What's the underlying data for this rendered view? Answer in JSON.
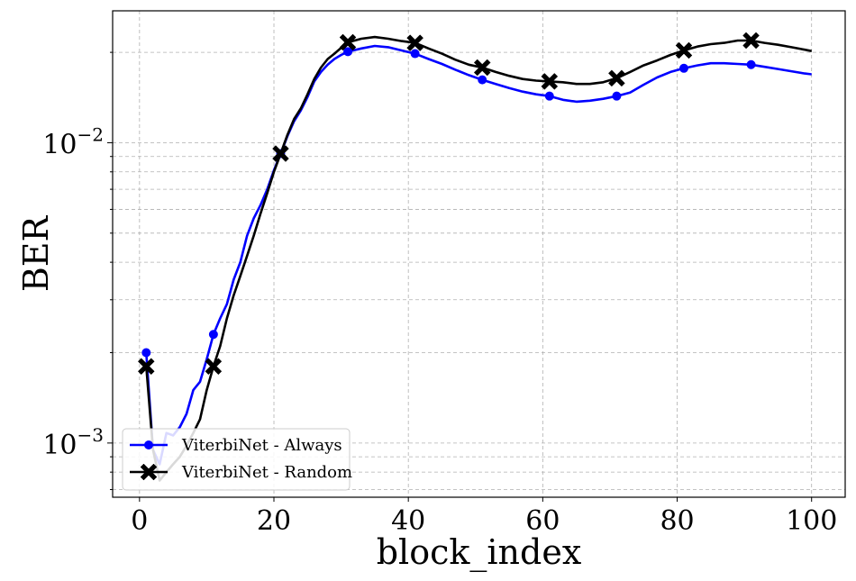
{
  "chart_data": {
    "type": "line",
    "xlabel": "block_index",
    "ylabel": "BER",
    "xlim": [
      -4,
      105
    ],
    "ylim": [
      0.00066,
      0.0275
    ],
    "yscale": "log",
    "grid": true,
    "grid_which": "both",
    "legend_position": "lower-left",
    "x_ticks": [
      0,
      20,
      40,
      60,
      80,
      100
    ],
    "x_tick_labels": [
      "0",
      "20",
      "40",
      "60",
      "80",
      "100"
    ],
    "y_ticks": [
      0.001,
      0.01
    ],
    "y_tick_labels": [
      {
        "base": "10",
        "exp": "−3"
      },
      {
        "base": "10",
        "exp": "−2"
      }
    ],
    "series": [
      {
        "name": "ViterbiNet - Always",
        "color": "#0000ff",
        "marker": "circle",
        "markevery": [
          1,
          11,
          21,
          31,
          41,
          51,
          61,
          71,
          81,
          91
        ],
        "x": [
          1,
          2,
          3,
          4,
          5,
          6,
          7,
          8,
          9,
          10,
          11,
          12,
          13,
          14,
          15,
          16,
          17,
          18,
          19,
          20,
          21,
          22,
          23,
          24,
          25,
          26,
          27,
          28,
          29,
          30,
          31,
          33,
          35,
          37,
          39,
          41,
          43,
          45,
          47,
          49,
          51,
          53,
          55,
          57,
          59,
          61,
          63,
          65,
          67,
          69,
          71,
          73,
          75,
          77,
          79,
          81,
          83,
          85,
          87,
          89,
          91,
          93,
          95,
          97,
          99,
          100
        ],
        "y": [
          0.002,
          0.00095,
          0.00085,
          0.00108,
          0.00106,
          0.00113,
          0.00125,
          0.0015,
          0.0016,
          0.0019,
          0.0023,
          0.0026,
          0.0029,
          0.0035,
          0.004,
          0.0049,
          0.0056,
          0.0062,
          0.007,
          0.0081,
          0.0092,
          0.0105,
          0.0118,
          0.0128,
          0.0142,
          0.016,
          0.0172,
          0.0182,
          0.019,
          0.0196,
          0.0201,
          0.0206,
          0.021,
          0.0208,
          0.0203,
          0.0198,
          0.019,
          0.0183,
          0.0175,
          0.0168,
          0.0162,
          0.0157,
          0.0152,
          0.0148,
          0.0145,
          0.0143,
          0.0139,
          0.0137,
          0.0138,
          0.014,
          0.0143,
          0.0147,
          0.0156,
          0.0165,
          0.0172,
          0.0177,
          0.0181,
          0.0184,
          0.0184,
          0.0183,
          0.0182,
          0.0179,
          0.0176,
          0.0173,
          0.017,
          0.0169
        ]
      },
      {
        "name": "ViterbiNet - Random",
        "color": "#000000",
        "marker": "X",
        "markevery": [
          1,
          11,
          21,
          31,
          41,
          51,
          61,
          71,
          81,
          91
        ],
        "x": [
          1,
          2,
          3,
          4,
          5,
          6,
          7,
          8,
          9,
          10,
          11,
          12,
          13,
          14,
          15,
          16,
          17,
          18,
          19,
          20,
          21,
          22,
          23,
          24,
          25,
          26,
          27,
          28,
          29,
          30,
          31,
          33,
          35,
          37,
          39,
          41,
          43,
          45,
          47,
          49,
          51,
          53,
          55,
          57,
          59,
          61,
          63,
          65,
          67,
          69,
          71,
          73,
          75,
          77,
          79,
          81,
          83,
          85,
          87,
          89,
          91,
          93,
          95,
          97,
          99,
          100
        ],
        "y": [
          0.0018,
          0.00095,
          0.00075,
          0.0008,
          0.00085,
          0.0009,
          0.00098,
          0.00108,
          0.0012,
          0.0015,
          0.0018,
          0.0021,
          0.0026,
          0.0031,
          0.0036,
          0.0042,
          0.0049,
          0.0058,
          0.0068,
          0.008,
          0.0092,
          0.0106,
          0.012,
          0.013,
          0.0145,
          0.0163,
          0.0178,
          0.019,
          0.0198,
          0.0207,
          0.0216,
          0.0222,
          0.0225,
          0.0222,
          0.0218,
          0.0215,
          0.0206,
          0.0198,
          0.0189,
          0.0182,
          0.0178,
          0.0172,
          0.0167,
          0.0163,
          0.0161,
          0.016,
          0.0159,
          0.0157,
          0.0157,
          0.0159,
          0.0164,
          0.0172,
          0.0181,
          0.0188,
          0.0196,
          0.0203,
          0.0209,
          0.0213,
          0.0215,
          0.0219,
          0.0219,
          0.0215,
          0.0212,
          0.0208,
          0.0204,
          0.0202
        ]
      }
    ]
  }
}
